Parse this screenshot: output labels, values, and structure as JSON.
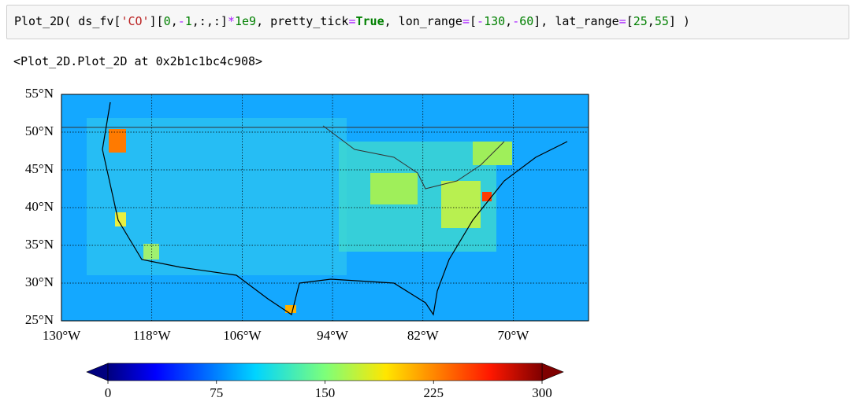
{
  "code_cell": {
    "tokens": [
      "Plot_2D( ds_fv[",
      "'CO'",
      "][",
      "0",
      ",",
      "-",
      "1",
      ",:,:]",
      "*",
      "1e9",
      ", pretty_tick",
      "=",
      "True",
      ", lon_range",
      "=",
      "[",
      "-",
      "130",
      ",",
      "-",
      "60",
      "], lat_range",
      "=",
      "[",
      "25",
      ",",
      "55",
      "] )"
    ]
  },
  "output": {
    "text": "<Plot_2D.Plot_2D at 0x2b1c1bc4c908>"
  },
  "plot": {
    "xlim": [
      -130,
      -60
    ],
    "ylim": [
      25,
      55
    ],
    "xticks": [
      {
        "value": -130,
        "label": "130°W"
      },
      {
        "value": -118,
        "label": "118°W"
      },
      {
        "value": -106,
        "label": "106°W"
      },
      {
        "value": -94,
        "label": "94°W"
      },
      {
        "value": -82,
        "label": "82°W"
      },
      {
        "value": -70,
        "label": "70°W"
      }
    ],
    "yticks": [
      {
        "value": 55,
        "label": "55°N"
      },
      {
        "value": 50,
        "label": "50°N"
      },
      {
        "value": 45,
        "label": "45°N"
      },
      {
        "value": 40,
        "label": "40°N"
      },
      {
        "value": 35,
        "label": "35°N"
      },
      {
        "value": 30,
        "label": "30°N"
      },
      {
        "value": 25,
        "label": "25°N"
      }
    ],
    "colorbar": {
      "lim": [
        0,
        300
      ],
      "ticks": [
        0,
        75,
        150,
        225,
        300
      ]
    }
  }
}
